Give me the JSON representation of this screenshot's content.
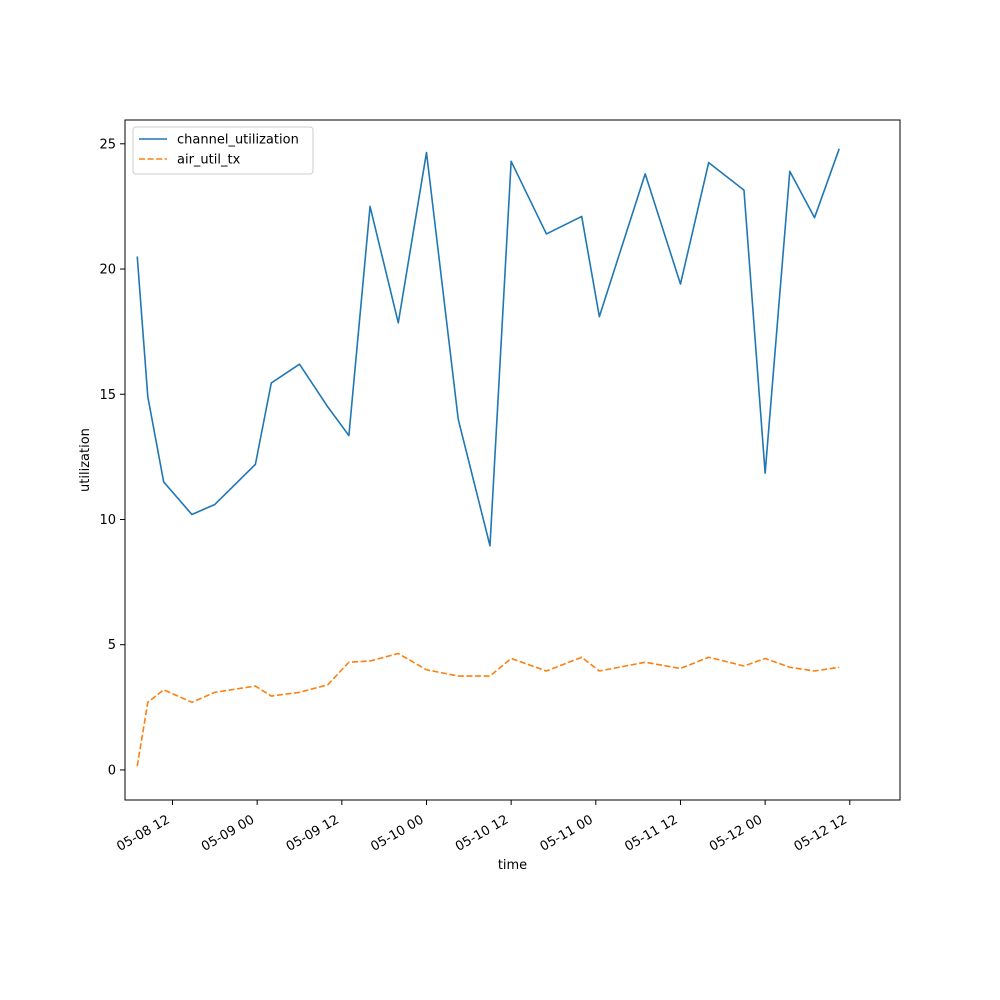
{
  "chart_data": {
    "type": "line",
    "xlabel": "time",
    "ylabel": "utilization",
    "x_axis_type": "datetime",
    "xlim": [
      "2024-05-08T05:16",
      "2024-05-12T19:07"
    ],
    "ylim": [
      -1.2,
      25.95
    ],
    "x_ticks": [
      {
        "value": "2024-05-08T12:00",
        "label": "05-08 12"
      },
      {
        "value": "2024-05-09T00:00",
        "label": "05-09 00"
      },
      {
        "value": "2024-05-09T12:00",
        "label": "05-09 12"
      },
      {
        "value": "2024-05-10T00:00",
        "label": "05-10 00"
      },
      {
        "value": "2024-05-10T12:00",
        "label": "05-10 12"
      },
      {
        "value": "2024-05-11T00:00",
        "label": "05-11 00"
      },
      {
        "value": "2024-05-11T12:00",
        "label": "05-11 12"
      },
      {
        "value": "2024-05-12T00:00",
        "label": "05-12 00"
      },
      {
        "value": "2024-05-12T12:00",
        "label": "05-12 12"
      }
    ],
    "y_ticks": [
      0,
      5,
      10,
      15,
      20,
      25
    ],
    "grid": false,
    "legend_position": "top-left",
    "x": [
      "2024-05-08T07:00",
      "2024-05-08T08:30",
      "2024-05-08T10:45",
      "2024-05-08T14:45",
      "2024-05-08T18:00",
      "2024-05-08T23:45",
      "2024-05-09T02:00",
      "2024-05-09T06:00",
      "2024-05-09T10:00",
      "2024-05-09T13:00",
      "2024-05-09T16:00",
      "2024-05-09T20:00",
      "2024-05-10T00:00",
      "2024-05-10T04:30",
      "2024-05-10T09:00",
      "2024-05-10T12:00",
      "2024-05-10T17:00",
      "2024-05-10T22:00",
      "2024-05-11T00:30",
      "2024-05-11T07:00",
      "2024-05-11T12:00",
      "2024-05-11T16:00",
      "2024-05-11T21:00",
      "2024-05-12T00:00",
      "2024-05-12T03:30",
      "2024-05-12T07:00",
      "2024-05-12T10:30"
    ],
    "series": [
      {
        "name": "channel_utilization",
        "color": "#1f77b4",
        "style": "solid",
        "values": [
          20.5,
          14.9,
          11.5,
          10.2,
          10.6,
          12.2,
          15.45,
          16.2,
          14.5,
          13.35,
          22.5,
          17.85,
          24.65,
          14.0,
          8.95,
          24.3,
          21.4,
          22.1,
          18.1,
          23.8,
          19.4,
          24.25,
          23.15,
          11.85,
          23.9,
          22.05,
          24.8
        ]
      },
      {
        "name": "air_util_tx",
        "color": "#ff7f0e",
        "style": "dashed",
        "values": [
          0.15,
          2.7,
          3.2,
          2.7,
          3.1,
          3.35,
          2.95,
          3.1,
          3.4,
          4.3,
          4.35,
          4.65,
          4.0,
          3.75,
          3.75,
          4.45,
          3.95,
          4.5,
          3.95,
          4.3,
          4.05,
          4.5,
          4.15,
          4.45,
          4.1,
          3.95,
          4.1
        ]
      }
    ]
  }
}
